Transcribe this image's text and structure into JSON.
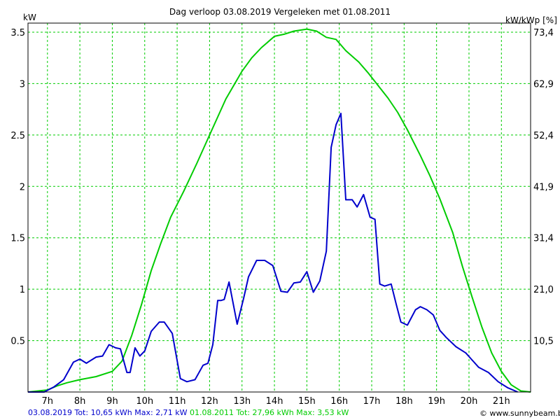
{
  "chart_data": {
    "type": "line",
    "title": "Dag  verloop 03.08.2019   Vergeleken met 01.08.2011",
    "ylabel_left": "kW",
    "ylabel_right": "kW/kWp [%]",
    "ylim": [
      0,
      3.5
    ],
    "xlim": [
      6.4,
      21.9
    ],
    "y_ticks_left": [
      "0.5",
      "1",
      "1.5",
      "2",
      "2.5",
      "3",
      "3.5"
    ],
    "y_ticks_right": [
      "10,5",
      "21,0",
      "31,4",
      "41,9",
      "52,4",
      "62,9",
      "73,4"
    ],
    "x_ticks": [
      "7h",
      "8h",
      "9h",
      "10h",
      "11h",
      "12h",
      "13h",
      "14h",
      "15h",
      "16h",
      "17h",
      "18h",
      "19h",
      "20h",
      "21h"
    ],
    "grid": true,
    "series": [
      {
        "name": "03.08.2019",
        "color": "#0000cc",
        "x": [
          6.4,
          6.9,
          7.2,
          7.5,
          7.8,
          8.0,
          8.2,
          8.5,
          8.7,
          8.9,
          9.1,
          9.25,
          9.45,
          9.55,
          9.7,
          9.85,
          10.0,
          10.2,
          10.45,
          10.6,
          10.85,
          11.1,
          11.3,
          11.55,
          11.8,
          11.95,
          12.1,
          12.25,
          12.35,
          12.45,
          12.6,
          12.85,
          13.05,
          13.2,
          13.45,
          13.7,
          13.95,
          14.2,
          14.4,
          14.6,
          14.8,
          15.0,
          15.2,
          15.4,
          15.6,
          15.75,
          15.9,
          16.05,
          16.2,
          16.4,
          16.55,
          16.75,
          16.95,
          17.1,
          17.25,
          17.4,
          17.6,
          17.75,
          17.9,
          18.1,
          18.35,
          18.5,
          18.7,
          18.9,
          19.1,
          19.3,
          19.6,
          19.9,
          20.1,
          20.3,
          20.6,
          20.9,
          21.2,
          21.5
        ],
        "y": [
          0,
          0,
          0.05,
          0.12,
          0.29,
          0.32,
          0.28,
          0.34,
          0.35,
          0.46,
          0.43,
          0.42,
          0.19,
          0.19,
          0.43,
          0.35,
          0.4,
          0.59,
          0.68,
          0.68,
          0.57,
          0.13,
          0.1,
          0.12,
          0.26,
          0.28,
          0.46,
          0.89,
          0.89,
          0.9,
          1.07,
          0.66,
          0.91,
          1.12,
          1.28,
          1.28,
          1.23,
          0.98,
          0.97,
          1.06,
          1.07,
          1.17,
          0.97,
          1.08,
          1.37,
          2.38,
          2.6,
          2.71,
          1.87,
          1.87,
          1.8,
          1.92,
          1.7,
          1.68,
          1.05,
          1.03,
          1.05,
          0.86,
          0.68,
          0.65,
          0.8,
          0.83,
          0.8,
          0.75,
          0.6,
          0.53,
          0.44,
          0.38,
          0.31,
          0.24,
          0.19,
          0.1,
          0.04,
          0
        ]
      },
      {
        "name": "01.08.2011",
        "color": "#00cc00",
        "x": [
          6.4,
          7.0,
          7.3,
          7.6,
          8.0,
          8.5,
          9.0,
          9.3,
          9.6,
          9.9,
          10.2,
          10.5,
          10.8,
          11.2,
          11.6,
          12.0,
          12.5,
          13.0,
          13.3,
          13.6,
          14.0,
          14.3,
          14.6,
          15.0,
          15.3,
          15.6,
          15.9,
          16.2,
          16.6,
          16.9,
          17.2,
          17.5,
          17.8,
          18.1,
          18.5,
          18.8,
          19.1,
          19.5,
          19.8,
          20.1,
          20.4,
          20.7,
          21.0,
          21.3,
          21.6,
          21.9
        ],
        "y": [
          0,
          0.02,
          0.06,
          0.09,
          0.12,
          0.15,
          0.2,
          0.3,
          0.55,
          0.85,
          1.18,
          1.45,
          1.7,
          1.95,
          2.22,
          2.5,
          2.85,
          3.12,
          3.25,
          3.35,
          3.46,
          3.48,
          3.51,
          3.53,
          3.51,
          3.45,
          3.43,
          3.32,
          3.21,
          3.1,
          2.98,
          2.86,
          2.72,
          2.55,
          2.3,
          2.1,
          1.88,
          1.55,
          1.22,
          0.92,
          0.63,
          0.38,
          0.2,
          0.07,
          0.01,
          0
        ]
      }
    ]
  },
  "footer": {
    "blue": "03.08.2019 Tot: 10,65 kWh Max: 2,71 kW",
    "green": "01.08.2011 Tot: 27,96 kWh Max: 3,53 kW"
  },
  "credit": "© www.sunnybeam.be"
}
